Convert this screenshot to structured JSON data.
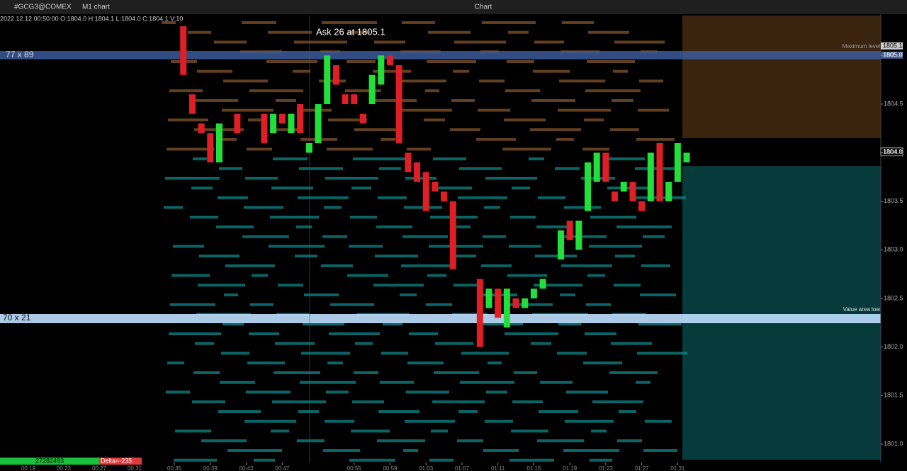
{
  "toolbar": {
    "symbol": "#GCG3@COMEX",
    "timeframe": "M1 chart",
    "window_title": "Chart"
  },
  "info_line": "2022.12.12 00:50:00 O:1804.0 H:1804.1 L:1804.0 C:1804.1 V:10",
  "annotation": "Ask 26 at 1805.1",
  "levels": {
    "maximum": "Maximum level",
    "value_area_low": "Value area low",
    "ask_price": "1805.1",
    "current_price": "1805.0",
    "last_close": "1804.0"
  },
  "profile": {
    "high_row": "77 x 89",
    "low_row": "70 x 21"
  },
  "footer": {
    "volume": "27282493",
    "delta": "Delta=-235"
  },
  "left_times": [
    "00:19",
    "00:23",
    "00:27",
    "00:31"
  ],
  "chart_data": {
    "type": "candlestick",
    "x": [
      36,
      37,
      38,
      39,
      40,
      42,
      45,
      46,
      47,
      48,
      49,
      50,
      51,
      52,
      53,
      54,
      55,
      56,
      57,
      58,
      59,
      60,
      61,
      62,
      63,
      64,
      65,
      66,
      69,
      70,
      71,
      72,
      73,
      74,
      75,
      76,
      78,
      79,
      80,
      81,
      82,
      83,
      84,
      85,
      86,
      87,
      88,
      89,
      90,
      91,
      92
    ],
    "open": [
      1805.3,
      1804.6,
      1804.3,
      1804.2,
      1803.9,
      1804.4,
      1804.4,
      1804.2,
      1804.4,
      1804.2,
      1804.5,
      1804.0,
      1804.1,
      1804.5,
      1804.9,
      1804.6,
      1804.6,
      1804.4,
      1804.5,
      1804.7,
      1805.0,
      1804.9,
      1804.0,
      1803.9,
      1803.8,
      1803.7,
      1803.6,
      1803.5,
      1802.7,
      1802.4,
      1802.6,
      1802.2,
      1802.5,
      1802.4,
      1802.5,
      1802.6,
      1802.9,
      1803.3,
      1803.0,
      1803.4,
      1803.7,
      1804.0,
      1803.6,
      1803.6,
      1803.7,
      1803.5,
      1803.5,
      1804.1,
      1803.5,
      1803.7,
      1803.9
    ],
    "close": [
      1804.8,
      1804.4,
      1804.2,
      1803.9,
      1804.3,
      1804.2,
      1804.1,
      1804.4,
      1804.3,
      1804.4,
      1804.2,
      1804.1,
      1804.5,
      1805.0,
      1804.7,
      1804.5,
      1804.5,
      1804.3,
      1804.8,
      1805.0,
      1804.9,
      1804.1,
      1803.8,
      1803.7,
      1803.4,
      1803.6,
      1803.5,
      1802.8,
      1802.0,
      1802.6,
      1802.3,
      1802.6,
      1802.4,
      1802.5,
      1802.6,
      1802.7,
      1803.2,
      1803.1,
      1803.3,
      1803.9,
      1804.0,
      1803.7,
      1803.5,
      1803.7,
      1803.5,
      1803.4,
      1804.0,
      1803.5,
      1803.7,
      1804.1,
      1804.0
    ],
    "colors": {
      "up": "#22e03a",
      "down": "#e01e26"
    },
    "ylim": [
      1800.84,
      1805.41
    ],
    "yticks": [
      {
        "value": 1805,
        "label": "1805.0"
      },
      {
        "value": 1804.5,
        "label": "1804.5"
      },
      {
        "value": 1804,
        "label": "1804.0"
      },
      {
        "value": 1803.5,
        "label": "1803.5"
      },
      {
        "value": 1803,
        "label": "1803.0"
      },
      {
        "value": 1802.5,
        "label": "1802.5"
      },
      {
        "value": 1802,
        "label": "1802.0"
      },
      {
        "value": 1801.5,
        "label": "1801.5"
      },
      {
        "value": 1801,
        "label": "1801.0"
      }
    ],
    "xlim": [
      15.6,
      113.6
    ],
    "xticks": [
      {
        "value": 35,
        "label": "00:35"
      },
      {
        "value": 39,
        "label": "00:39"
      },
      {
        "value": 43,
        "label": "00:43"
      },
      {
        "value": 47,
        "label": "00:47"
      },
      {
        "value": 55,
        "label": "00:55"
      },
      {
        "value": 59,
        "label": "00:59"
      },
      {
        "value": 63,
        "label": "01:03"
      },
      {
        "value": 67,
        "label": "01:07"
      },
      {
        "value": 71,
        "label": "01:11"
      },
      {
        "value": 75,
        "label": "01:15"
      },
      {
        "value": 79,
        "label": "01:19"
      },
      {
        "value": 83,
        "label": "01:23"
      },
      {
        "value": 87,
        "label": "01:27"
      },
      {
        "value": 91,
        "label": "01:31"
      }
    ]
  }
}
